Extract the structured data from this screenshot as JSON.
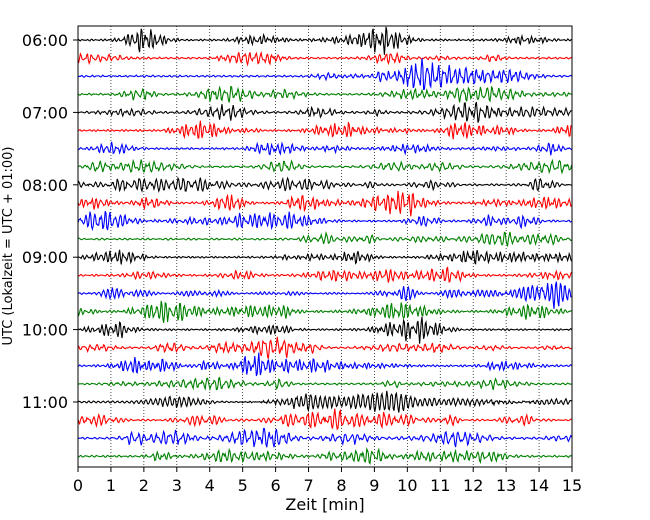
{
  "chart_data": {
    "type": "line",
    "title": "",
    "xlabel": "Zeit  [min]",
    "ylabel": "UTC (Lokalzeit = UTC + 01:00)",
    "xlim": [
      0,
      15
    ],
    "x_ticks": [
      "0",
      "1",
      "2",
      "3",
      "4",
      "5",
      "6",
      "7",
      "8",
      "9",
      "10",
      "11",
      "12",
      "13",
      "14",
      "15"
    ],
    "y_ticks": [
      "06:00",
      "07:00",
      "08:00",
      "09:00",
      "10:00",
      "11:00"
    ],
    "y_tick_rows": [
      0,
      4,
      8,
      12,
      16,
      20
    ],
    "grid": "vertical dotted lines at each minute",
    "trace_count": 24,
    "trace_interval_min": 15,
    "trace_colors": [
      "#000000",
      "#ff0000",
      "#0000ff",
      "#008000"
    ],
    "legend": "none"
  }
}
